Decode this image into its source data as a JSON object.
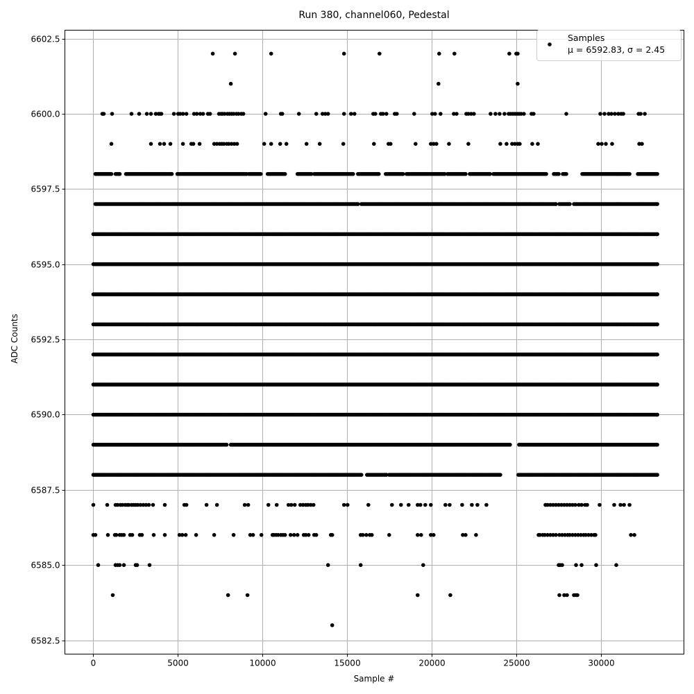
{
  "chart_data": {
    "type": "scatter",
    "title": "Run 380, channel060, Pedestal",
    "xlabel": "Sample #",
    "ylabel": "ADC Counts",
    "xlim": [
      -1680,
      34900
    ],
    "ylim": [
      6582.04,
      6602.78
    ],
    "xticks": [
      0,
      5000,
      10000,
      15000,
      20000,
      25000,
      30000
    ],
    "xtick_labels": [
      "0",
      "5000",
      "10000",
      "15000",
      "20000",
      "25000",
      "30000"
    ],
    "yticks": [
      6582.5,
      6585.0,
      6587.5,
      6590.0,
      6592.5,
      6595.0,
      6597.5,
      6600.0,
      6602.5
    ],
    "ytick_labels": [
      "6582.5",
      "6585.0",
      "6587.5",
      "6590.0",
      "6592.5",
      "6595.0",
      "6597.5",
      "6600.0",
      "6602.5"
    ],
    "grid": true,
    "marker_color": "#000000",
    "grid_color": "#b0b0b0",
    "legend": {
      "placement": "top-right",
      "entries": [
        {
          "label": "Samples",
          "stats": "μ = 6592.83, σ = 2.45"
        }
      ]
    },
    "series": [
      {
        "name": "Samples",
        "dense_levels": [
          {
            "y": 6598,
            "x_ranges": [
              [
                123,
                1067
              ],
              [
                1313,
                1560
              ],
              [
                1929,
                4638
              ],
              [
                4966,
                9070
              ],
              [
                9193,
                9891
              ],
              [
                10301,
                11327
              ],
              [
                12066,
                12887
              ],
              [
                13051,
                15349
              ],
              [
                15637,
                16867
              ],
              [
                17278,
                18304
              ],
              [
                18509,
                20766
              ],
              [
                20930,
                21997
              ],
              [
                22244,
                23434
              ],
              [
                23639,
                26758
              ],
              [
                27209,
                27497
              ],
              [
                27744,
                27949
              ],
              [
                28892,
                31683
              ],
              [
                32175,
                33324
              ]
            ]
          },
          {
            "y": 6597,
            "x_ranges": [
              [
                123,
                15637
              ],
              [
                15841,
                27333
              ],
              [
                27538,
                28153
              ],
              [
                28400,
                33324
              ]
            ]
          },
          {
            "y": 6596,
            "x_ranges": [
              [
                0,
                33324
              ]
            ]
          },
          {
            "y": 6595,
            "x_ranges": [
              [
                0,
                33324
              ]
            ]
          },
          {
            "y": 6594,
            "x_ranges": [
              [
                0,
                33324
              ]
            ]
          },
          {
            "y": 6593,
            "x_ranges": [
              [
                0,
                33324
              ]
            ]
          },
          {
            "y": 6592,
            "x_ranges": [
              [
                0,
                33324
              ]
            ]
          },
          {
            "y": 6591,
            "x_ranges": [
              [
                0,
                33324
              ]
            ]
          },
          {
            "y": 6590,
            "x_ranges": [
              [
                0,
                33324
              ]
            ]
          },
          {
            "y": 6589,
            "x_ranges": [
              [
                0,
                7880
              ],
              [
                8126,
                24624
              ],
              [
                25157,
                33324
              ]
            ]
          },
          {
            "y": 6588,
            "x_ranges": [
              [
                0,
                15841
              ],
              [
                16170,
                17319
              ],
              [
                17483,
                24050
              ],
              [
                25116,
                33324
              ]
            ]
          }
        ],
        "sparse_levels": [
          {
            "y": 6602,
            "x": [
              7059,
              8372,
              10506,
              14815,
              16908,
              20438,
              21340,
              24583,
              24993,
              25075
            ]
          },
          {
            "y": 6601,
            "x": [
              8126,
              20397,
              25075
            ]
          },
          {
            "y": 6600,
            "x": [
              534,
              616,
              1108,
              2257,
              2709,
              3160,
              3406,
              3694,
              3858,
              3940,
              4022,
              4761,
              5007,
              5130,
              5294,
              5499,
              5951,
              6115,
              6320,
              6484,
              6772,
              6895,
              7428,
              7551,
              7633,
              7757,
              7921,
              8044,
              8167,
              8290,
              8454,
              8577,
              8742,
              8865,
              10178,
              11081,
              11163,
              12148,
              13174,
              13543,
              13707,
              13872,
              14815,
              15226,
              15431,
              16539,
              16662,
              16991,
              17114,
              17319,
              17811,
              17934,
              18960,
              20028,
              20192,
              20520,
              21300,
              21464,
              22038,
              22162,
              22326,
              22490,
              23475,
              23762,
              24008,
              24296,
              24542,
              24665,
              24788,
              24911,
              25034,
              25157,
              25280,
              25444,
              25896,
              26019,
              27949,
              29959,
              30205,
              30452,
              30616,
              30821,
              31026,
              31190,
              31314,
              32216,
              32339,
              32586
            ]
          },
          {
            "y": 6599,
            "x": [
              1067,
              3406,
              3940,
              4186,
              4555,
              5294,
              5787,
              5910,
              6279,
              7141,
              7305,
              7469,
              7592,
              7716,
              7880,
              8003,
              8167,
              8331,
              8495,
              10096,
              10506,
              11040,
              11409,
              12599,
              13379,
              14774,
              16580,
              17442,
              17565,
              19042,
              19945,
              20110,
              20274,
              21013,
              22162,
              24050,
              24419,
              24747,
              24911,
              25075,
              25198,
              25937,
              26266,
              29836,
              30041,
              30287,
              30657,
              32257,
              32421
            ]
          },
          {
            "y": 6587,
            "x": [
              0,
              821,
              1313,
              1436,
              1601,
              1724,
              1888,
              2011,
              2093,
              2257,
              2380,
              2503,
              2627,
              2791,
              2955,
              3119,
              3283,
              3529,
              4227,
              5376,
              5499,
              6690,
              7305,
              8947,
              9152,
              10342,
              10835,
              11532,
              11696,
              11902,
              12230,
              12394,
              12558,
              12681,
              12845,
              13010,
              14815,
              15021,
              16252,
              17647,
              18181,
              18632,
              19166,
              19330,
              19617,
              19945,
              20807,
              21054,
              21792,
              22367,
              22695,
              23229,
              26717,
              26840,
              27004,
              27168,
              27333,
              27497,
              27661,
              27826,
              27990,
              28153,
              28318,
              28482,
              28687,
              28852,
              29057,
              29180,
              29918,
              30780,
              31150,
              31355,
              31683
            ]
          },
          {
            "y": 6586,
            "x": [
              0,
              123,
              862,
              1272,
              1354,
              1560,
              1683,
              1806,
              2175,
              2298,
              2750,
              2873,
              3570,
              4227,
              5089,
              5253,
              5458,
              6074,
              7141,
              8290,
              9275,
              9439,
              9932,
              10588,
              10670,
              10794,
              10917,
              11081,
              11204,
              11327,
              11655,
              11861,
              12066,
              12435,
              12558,
              12722,
              13051,
              13174,
              14036,
              14118,
              15800,
              15924,
              16129,
              16334,
              16457,
              17483,
              19166,
              19371,
              19945,
              20110,
              21833,
              21997,
              22613,
              26307,
              26389,
              26553,
              26676,
              26840,
              27004,
              27168,
              27333,
              27538,
              27702,
              27867,
              28030,
              28153,
              28318,
              28482,
              28646,
              28810,
              28975,
              29098,
              29262,
              29426,
              29590,
              29672,
              31765,
              31970
            ]
          },
          {
            "y": 6585,
            "x": [
              287,
              1313,
              1436,
              1560,
              1806,
              2503,
              2586,
              3324,
              13872,
              15800,
              19494,
              27497,
              27579,
              27702,
              28523,
              28852,
              29713,
              30903
            ]
          },
          {
            "y": 6584,
            "x": [
              1149,
              7962,
              9111,
              19166,
              21095,
              27538,
              27826,
              27990,
              28400,
              28523,
              28605
            ]
          },
          {
            "y": 6583,
            "x": [
              14118
            ]
          }
        ]
      }
    ]
  }
}
